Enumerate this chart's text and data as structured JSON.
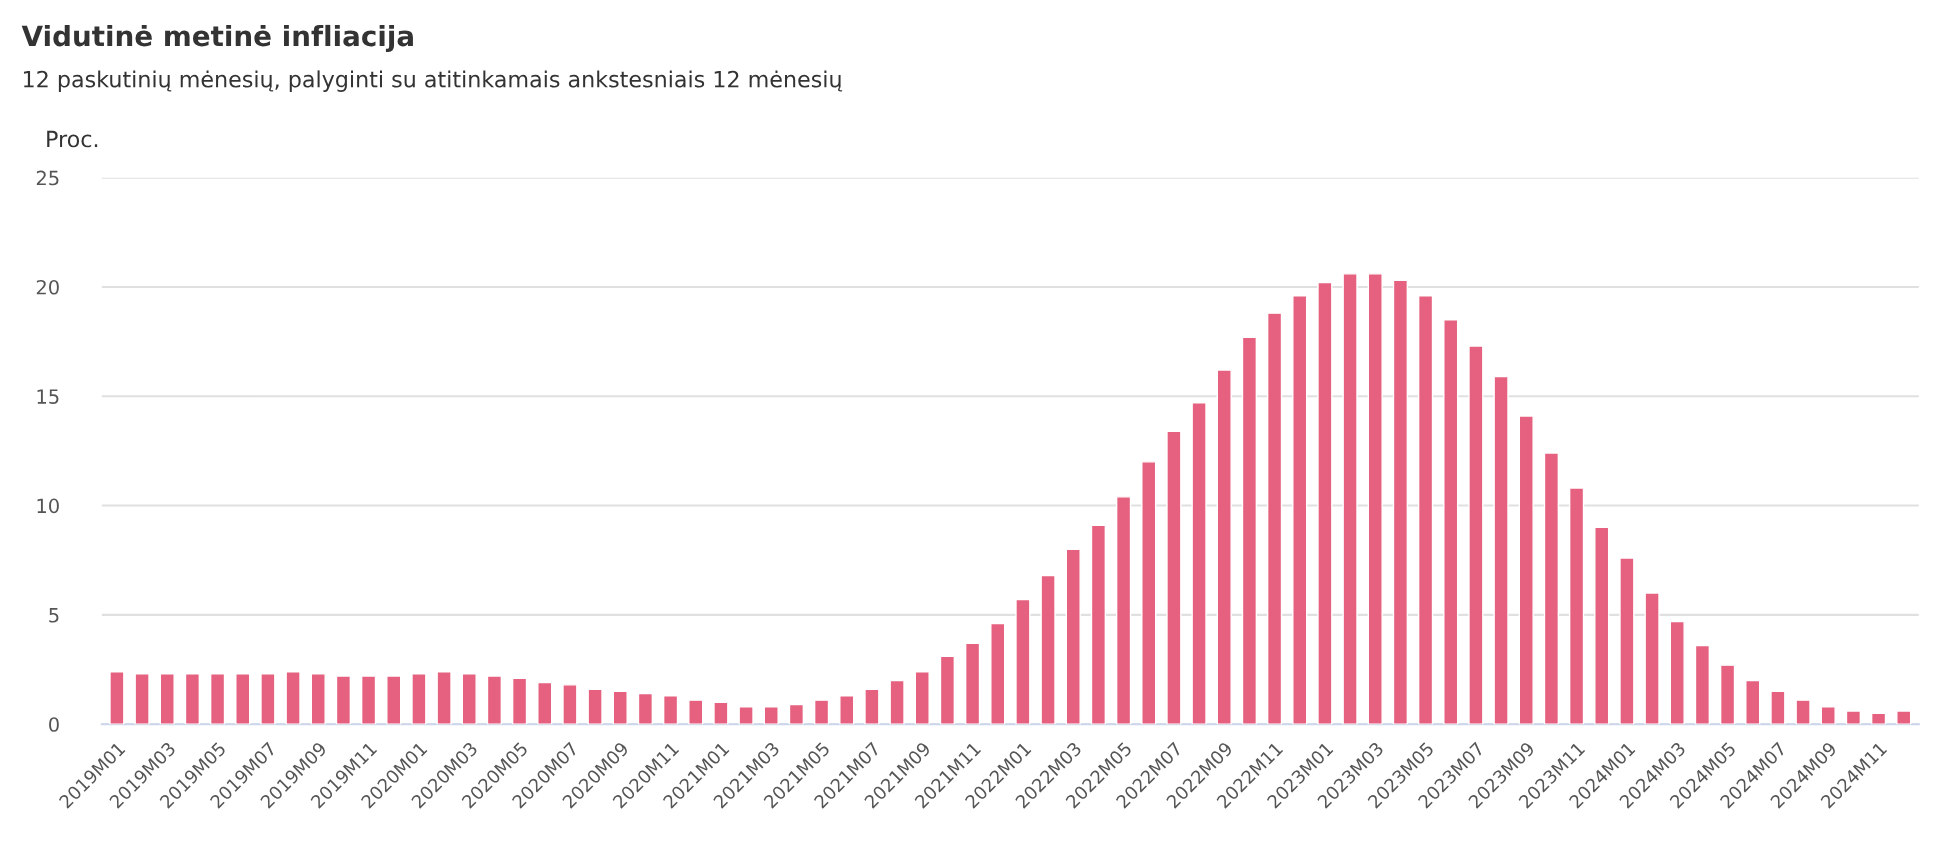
{
  "chart_data": {
    "type": "bar",
    "title": "Vidutinė metinė infliacija",
    "subtitle": "12 paskutinių mėnesių, palyginti su atitinkamais ankstesniais 12 mėnesių",
    "ylabel": "Proc.",
    "categories": [
      "2019M01",
      null,
      "2019M03",
      null,
      "2019M05",
      null,
      "2019M07",
      null,
      "2019M09",
      null,
      "2019M11",
      null,
      "2020M01",
      null,
      "2020M03",
      null,
      "2020M05",
      null,
      "2020M07",
      null,
      "2020M09",
      null,
      "2020M11",
      null,
      "2021M01",
      null,
      "2021M03",
      null,
      "2021M05",
      null,
      "2021M07",
      null,
      "2021M09",
      null,
      "2021M11",
      null,
      "2022M01",
      null,
      "2022M03",
      null,
      "2022M05",
      null,
      "2022M07",
      null,
      "2022M09",
      null,
      "2022M11",
      null,
      "2023M01",
      null,
      "2023M03",
      null,
      "2023M05",
      null,
      "2023M07",
      null,
      "2023M09",
      null,
      "2023M11",
      null,
      "2024M01",
      null,
      "2024M03",
      null,
      "2024M05",
      null,
      "2024M07",
      null,
      "2024M09",
      null,
      "2024M11",
      null
    ],
    "values": [
      2.4,
      2.3,
      2.3,
      2.3,
      2.3,
      2.3,
      2.3,
      2.4,
      2.3,
      2.2,
      2.2,
      2.2,
      2.3,
      2.4,
      2.3,
      2.2,
      2.1,
      1.9,
      1.8,
      1.6,
      1.5,
      1.4,
      1.3,
      1.1,
      1.0,
      0.8,
      0.8,
      0.9,
      1.1,
      1.3,
      1.6,
      2.0,
      2.4,
      3.1,
      3.7,
      4.6,
      5.7,
      6.8,
      8.0,
      9.1,
      10.4,
      12.0,
      13.4,
      14.7,
      16.2,
      17.7,
      18.8,
      19.6,
      20.2,
      20.6,
      20.6,
      20.3,
      19.6,
      18.5,
      17.3,
      15.9,
      14.1,
      12.4,
      10.8,
      9.0,
      7.6,
      6.0,
      4.7,
      3.6,
      2.7,
      2.0,
      1.5,
      1.1,
      0.8,
      0.6,
      0.5,
      0.6
    ],
    "color": "#e5617f",
    "ylim": [
      0,
      25
    ],
    "yticks": [
      0,
      5,
      10,
      15,
      20,
      25
    ],
    "grid": "y"
  }
}
